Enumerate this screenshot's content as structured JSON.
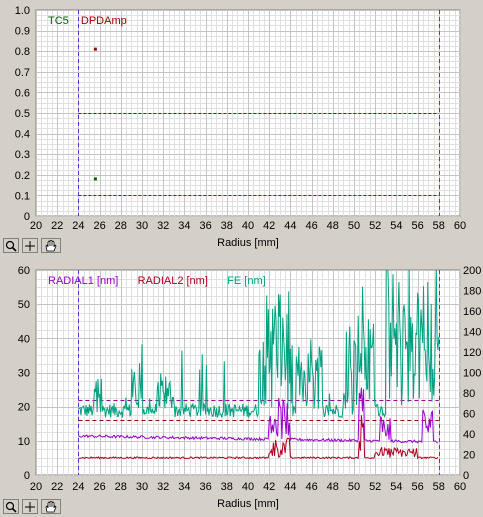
{
  "charts": [
    {
      "legend": [
        {
          "name": "TC5",
          "color": "#006400"
        },
        {
          "name": "DPDAmp",
          "color": "#a00000"
        }
      ],
      "xlabel": "Radius [mm]",
      "x_ticks": [
        20,
        22,
        24,
        26,
        28,
        30,
        32,
        34,
        36,
        38,
        40,
        42,
        44,
        46,
        48,
        50,
        52,
        54,
        56,
        58,
        60
      ],
      "y_left_ticks": [
        "0",
        "0.1",
        "0.2",
        "0.3",
        "0.4",
        "0.5",
        "0.6",
        "0.7",
        "0.8",
        "0.9",
        "1.0"
      ]
    },
    {
      "legend": [
        {
          "name": "RADIAL1 [nm]",
          "color": "#9900cc"
        },
        {
          "name": "RADIAL2 [nm]",
          "color": "#b00020"
        },
        {
          "name": "FE [nm]",
          "color": "#00a080"
        }
      ],
      "xlabel": "Radius [mm]",
      "x_ticks": [
        20,
        22,
        24,
        26,
        28,
        30,
        32,
        34,
        36,
        38,
        40,
        42,
        44,
        46,
        48,
        50,
        52,
        54,
        56,
        58,
        60
      ],
      "y_left_ticks": [
        "0",
        "10",
        "20",
        "30",
        "40",
        "50",
        "60"
      ],
      "y_right_ticks": [
        "0",
        "20",
        "40",
        "60",
        "80",
        "100",
        "120",
        "140",
        "160",
        "180",
        "200"
      ]
    }
  ],
  "toolbar": {
    "icons": [
      "zoom-icon",
      "crosshair-icon",
      "pan-hand-icon"
    ]
  },
  "chart_data": [
    {
      "type": "scatter",
      "xlim": [
        20,
        60
      ],
      "ylim": [
        0,
        1
      ],
      "grid": true,
      "series": [
        {
          "name": "TC5",
          "points": [
            [
              25.6,
              0.18
            ]
          ],
          "threshold": 0.1,
          "color": "#006400"
        },
        {
          "name": "DPDAmp",
          "points": [
            [
              25.6,
              0.81
            ]
          ],
          "threshold": 0.5,
          "color": "#a00000"
        }
      ],
      "vlines": [
        24,
        58
      ]
    },
    {
      "type": "line",
      "xlim": [
        20,
        60
      ],
      "ylim": [
        0,
        60
      ],
      "y2lim": [
        0,
        200
      ],
      "grid": true,
      "vlines": [
        24,
        58
      ],
      "hlines": [
        {
          "value": 22,
          "color": "#a000a0"
        },
        {
          "value": 16,
          "color": "#a00000"
        }
      ],
      "series": [
        {
          "name": "RADIAL1 [nm]",
          "axis": "left",
          "color": "#9900cc",
          "baseline": 9.5
        },
        {
          "name": "RADIAL2 [nm]",
          "axis": "left",
          "color": "#b00020",
          "baseline": 4.8
        },
        {
          "name": "FE [nm]",
          "axis": "right",
          "color": "#00a080",
          "baseline": 62
        }
      ]
    }
  ]
}
